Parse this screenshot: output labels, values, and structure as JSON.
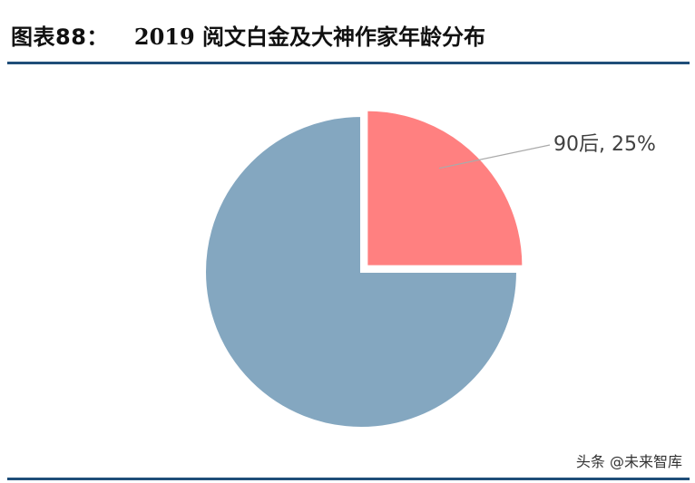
{
  "header": {
    "figure_number": "图表88：",
    "title": "2019 阅文白金及大神作家年龄分布"
  },
  "watermark": "头条 @未来智库",
  "colors": {
    "rule": "#1f4e79",
    "slice_highlight": "#ff8080",
    "slice_main": "#84a7c0",
    "leader_line": "#aaaaaa",
    "label_text": "#404040"
  },
  "chart_data": {
    "type": "pie",
    "slices": [
      {
        "label": "90后",
        "value": 25,
        "color": "#ff8080",
        "exploded": true,
        "data_label": "90后, 25%"
      },
      {
        "label": "",
        "value": 75,
        "color": "#84a7c0",
        "exploded": false,
        "data_label": ""
      }
    ],
    "start_angle": "12 o'clock, clockwise",
    "legend": "none"
  }
}
